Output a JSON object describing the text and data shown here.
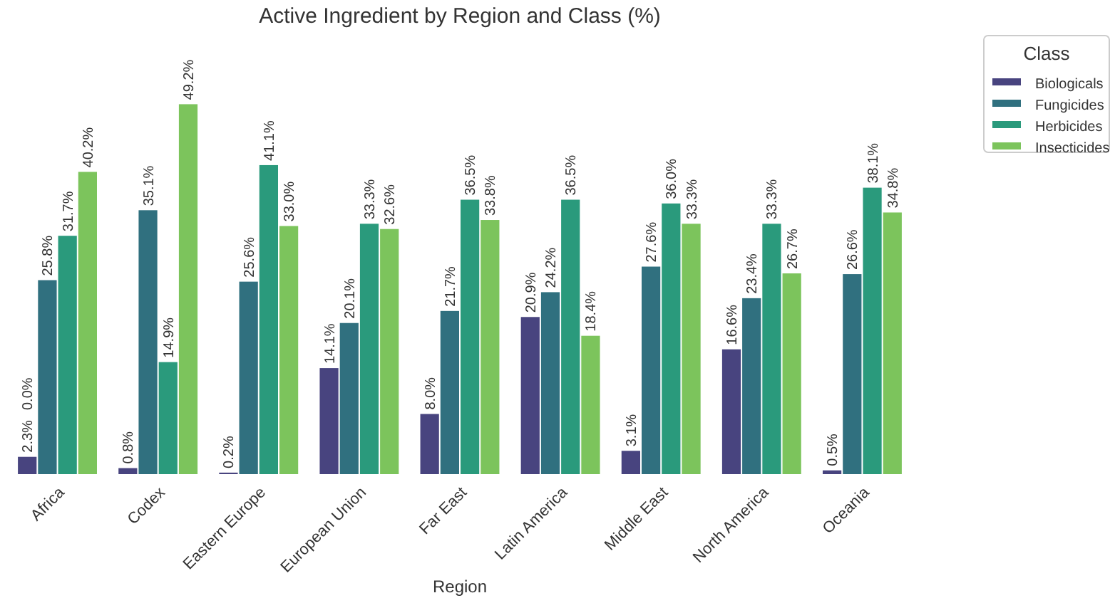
{
  "chart_data": {
    "type": "bar",
    "title": "Active Ingredient by Region and Class (%)",
    "xlabel": "Region",
    "legend_title": "Class",
    "legend": "top right",
    "categories": [
      "Africa",
      "Codex",
      "Eastern Europe",
      "European Union",
      "Far East",
      "Latin America",
      "Middle East",
      "North America",
      "Oceania"
    ],
    "series": [
      {
        "name": "Biologicals",
        "color": "#48447f",
        "values": [
          2.3,
          0.8,
          0.2,
          14.1,
          8.0,
          20.9,
          3.1,
          16.6,
          0.5
        ],
        "value_labels": [
          "2.3%",
          "0.8%",
          "0.2%",
          "14.1%",
          "8.0%",
          "20.9%",
          "3.1%",
          "16.6%",
          "0.5%"
        ]
      },
      {
        "name": "Fungicides",
        "color": "#30707f",
        "values": [
          25.8,
          35.1,
          25.6,
          20.1,
          21.7,
          24.2,
          27.6,
          23.4,
          26.6
        ],
        "value_labels": [
          "25.8%",
          "35.1%",
          "25.6%",
          "20.1%",
          "21.7%",
          "24.2%",
          "27.6%",
          "23.4%",
          "26.6%"
        ]
      },
      {
        "name": "Herbicides",
        "color": "#2a9a7c",
        "values": [
          31.7,
          14.9,
          41.1,
          33.3,
          36.5,
          36.5,
          36.0,
          33.3,
          38.1
        ],
        "value_labels": [
          "31.7%",
          "14.9%",
          "41.1%",
          "33.3%",
          "36.5%",
          "36.5%",
          "36.0%",
          "33.3%",
          "38.1%"
        ]
      },
      {
        "name": "Insecticides",
        "color": "#7cc45c",
        "values": [
          40.2,
          49.2,
          33.0,
          32.6,
          33.8,
          18.4,
          33.3,
          26.7,
          34.8
        ],
        "value_labels": [
          "40.2%",
          "49.2%",
          "33.0%",
          "32.6%",
          "33.8%",
          "18.4%",
          "33.3%",
          "26.7%",
          "34.8%"
        ]
      }
    ],
    "annotations": [
      "0.0%"
    ]
  }
}
